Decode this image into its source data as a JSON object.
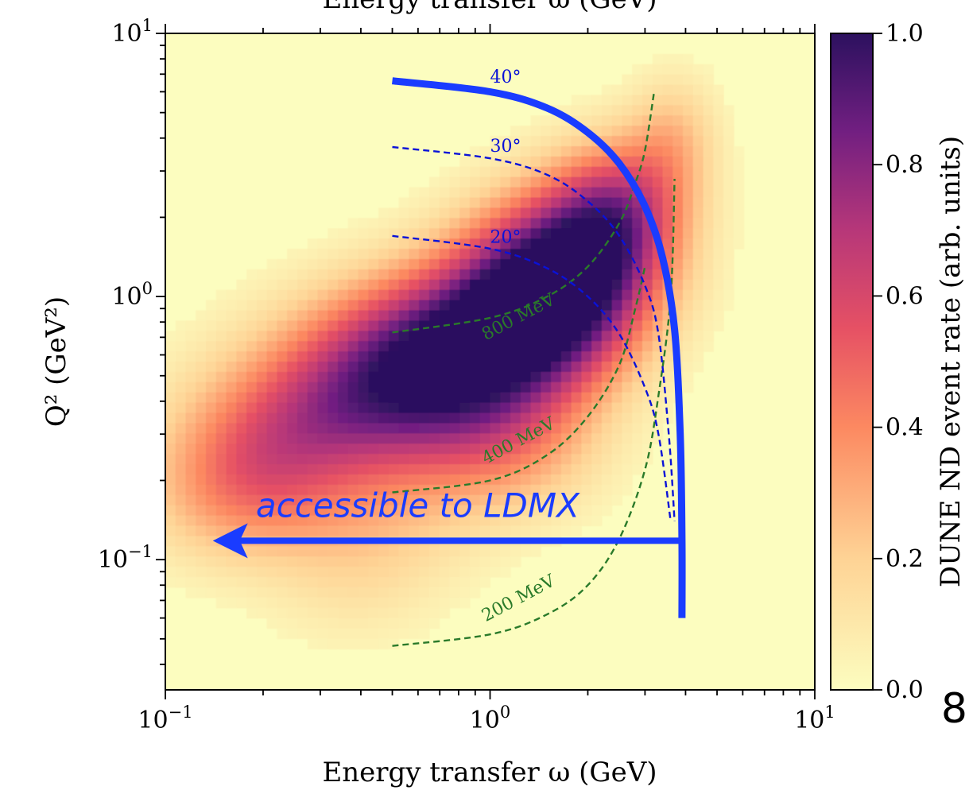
{
  "chart_data": {
    "type": "heatmap",
    "xlabel_top": "Energy transfer ω (GeV)",
    "xlabel": "Energy transfer ω (GeV)",
    "ylabel": "Q² (GeV²)",
    "xscale": "log",
    "yscale": "log",
    "xlim": [
      0.1,
      10
    ],
    "ylim": [
      0.032,
      10
    ],
    "x_ticks": [
      {
        "base": "10",
        "exp": "−1",
        "value": 0.1
      },
      {
        "base": "10",
        "exp": "0",
        "value": 1
      },
      {
        "base": "10",
        "exp": "1",
        "value": 10
      }
    ],
    "y_ticks": [
      {
        "base": "10",
        "exp": "−1",
        "value": 0.1
      },
      {
        "base": "10",
        "exp": "0",
        "value": 1
      },
      {
        "base": "10",
        "exp": "1",
        "value": 10
      }
    ],
    "colorbar": {
      "label": "DUNE ND event rate (arb. units)",
      "ticks": [
        "0.0",
        "0.2",
        "0.4",
        "0.6",
        "0.8",
        "1.0"
      ],
      "range": [
        0,
        1
      ],
      "colormap": "magma_r"
    },
    "density_blobs": [
      {
        "x": 1.55,
        "y": 1.1,
        "sx": 0.22,
        "sy": 0.26,
        "amp": 1.0
      },
      {
        "x": 0.6,
        "y": 0.7,
        "sx": 0.3,
        "sy": 0.22,
        "amp": 0.72
      },
      {
        "x": 0.25,
        "y": 0.38,
        "sx": 0.3,
        "sy": 0.22,
        "amp": 0.5
      },
      {
        "x": 2.4,
        "y": 2.2,
        "sx": 0.15,
        "sy": 0.2,
        "amp": 0.45
      },
      {
        "x": 0.16,
        "y": 0.2,
        "sx": 0.22,
        "sy": 0.2,
        "amp": 0.3
      },
      {
        "x": 0.9,
        "y": 0.35,
        "sx": 0.25,
        "sy": 0.2,
        "amp": 0.32
      },
      {
        "x": 0.5,
        "y": 0.13,
        "sx": 0.28,
        "sy": 0.2,
        "amp": 0.18
      },
      {
        "x": 1.4,
        "y": 0.22,
        "sx": 0.2,
        "sy": 0.18,
        "amp": 0.22
      },
      {
        "x": 0.45,
        "y": 0.065,
        "sx": 0.2,
        "sy": 0.18,
        "amp": 0.1
      },
      {
        "x": 3.6,
        "y": 4.2,
        "sx": 0.1,
        "sy": 0.18,
        "amp": 0.2
      }
    ],
    "angle_curves": [
      {
        "label": "20°",
        "label_at": [
          1.0,
          1.6
        ],
        "points": [
          [
            0.5,
            1.7
          ],
          [
            1.0,
            1.52
          ],
          [
            1.5,
            1.28
          ],
          [
            2.0,
            1.0
          ],
          [
            2.5,
            0.72
          ],
          [
            3.0,
            0.45
          ],
          [
            3.3,
            0.3
          ],
          [
            3.6,
            0.14
          ]
        ]
      },
      {
        "label": "30°",
        "label_at": [
          1.0,
          3.55
        ],
        "points": [
          [
            0.5,
            3.7
          ],
          [
            1.0,
            3.35
          ],
          [
            1.5,
            2.9
          ],
          [
            2.0,
            2.3
          ],
          [
            2.5,
            1.7
          ],
          [
            3.0,
            1.1
          ],
          [
            3.3,
            0.72
          ],
          [
            3.55,
            0.3
          ],
          [
            3.7,
            0.14
          ]
        ]
      },
      {
        "label": "40°",
        "label_at": [
          1.0,
          6.5
        ],
        "points": [
          [
            0.5,
            6.6
          ],
          [
            1.0,
            6.0
          ],
          [
            1.5,
            5.2
          ],
          [
            2.0,
            4.2
          ],
          [
            2.5,
            3.2
          ],
          [
            3.0,
            2.2
          ],
          [
            3.4,
            1.4
          ],
          [
            3.7,
            0.75
          ],
          [
            3.85,
            0.3
          ],
          [
            3.9,
            0.12
          ],
          [
            3.9,
            0.06
          ]
        ]
      }
    ],
    "energy_curves": [
      {
        "label": "200 MeV",
        "label_at": [
          0.97,
          0.058
        ],
        "points": [
          [
            0.5,
            0.047
          ],
          [
            1.0,
            0.052
          ],
          [
            1.5,
            0.062
          ],
          [
            2.0,
            0.08
          ],
          [
            2.5,
            0.12
          ],
          [
            3.0,
            0.22
          ],
          [
            3.3,
            0.42
          ],
          [
            3.6,
            1.0
          ],
          [
            3.7,
            2.8
          ]
        ]
      },
      {
        "label": "400 MeV",
        "label_at": [
          0.97,
          0.23
        ],
        "points": [
          [
            0.5,
            0.18
          ],
          [
            1.0,
            0.2
          ],
          [
            1.5,
            0.25
          ],
          [
            2.0,
            0.35
          ],
          [
            2.5,
            0.55
          ],
          [
            2.8,
            0.9
          ],
          [
            3.0,
            1.3
          ]
        ]
      },
      {
        "label": "800 MeV",
        "label_at": [
          0.97,
          0.68
        ],
        "points": [
          [
            0.5,
            0.73
          ],
          [
            1.0,
            0.83
          ],
          [
            1.5,
            1.0
          ],
          [
            2.0,
            1.3
          ],
          [
            2.5,
            1.9
          ],
          [
            2.8,
            2.7
          ],
          [
            3.0,
            3.6
          ],
          [
            3.2,
            6.0
          ]
        ]
      }
    ],
    "annotation": {
      "text": "accessible to LDMX",
      "color": "#1a3cff",
      "arrow_from": [
        3.9,
        0.118
      ],
      "arrow_to": [
        0.14,
        0.118
      ],
      "text_at": [
        0.19,
        0.145
      ]
    },
    "colors": {
      "angle": "#0a12d8",
      "energy": "#2a7a2a",
      "ldmx": "#1a3cff"
    }
  },
  "page_number": "8"
}
